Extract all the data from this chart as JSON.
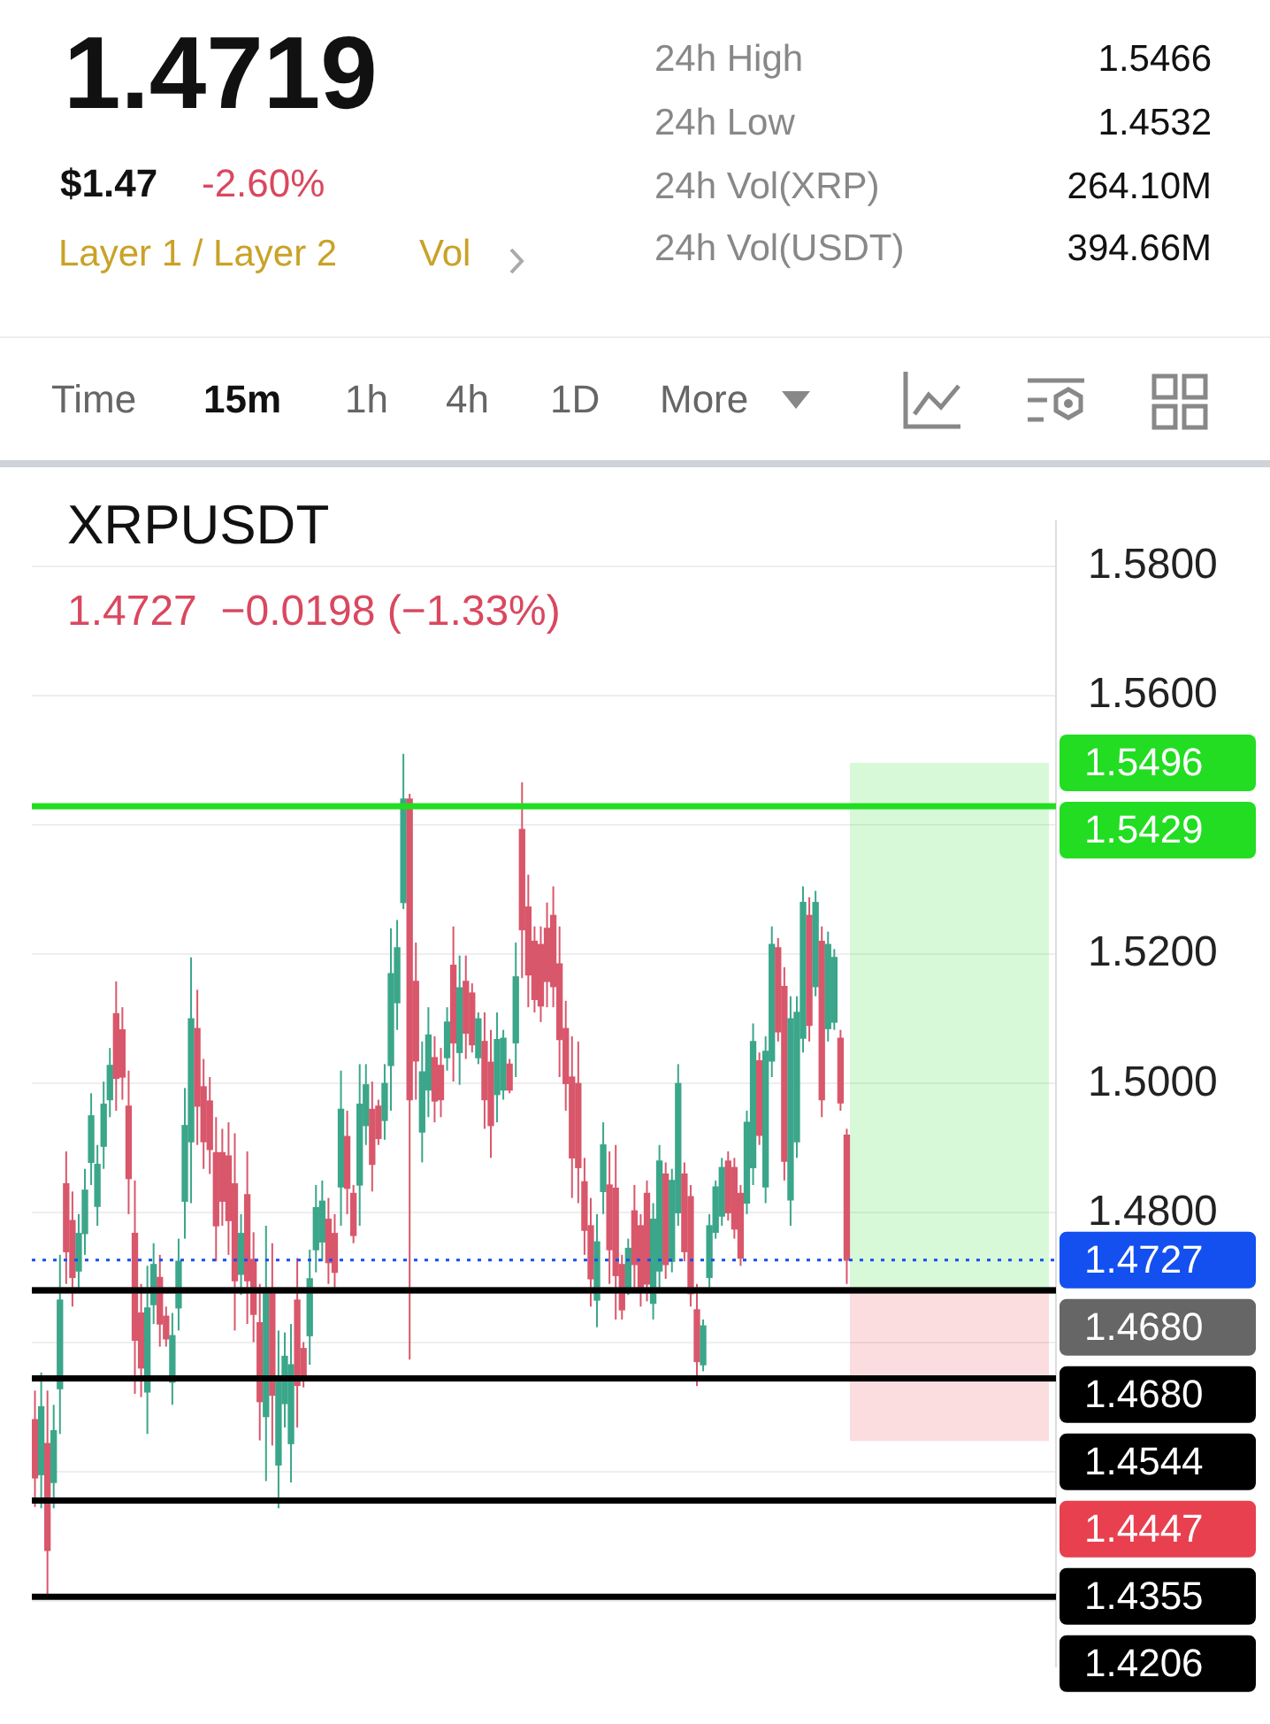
{
  "chart_data": {
    "type": "candlestick",
    "title": "XRPUSDT",
    "subtitle": "1.4727  −0.0198 (−1.33%)",
    "annotations": [
      "1.4719",
      "$1.47",
      "-2.60%",
      "Layer 1 / Layer 2",
      "Vol",
      "24h High",
      "1.5466",
      "24h Low",
      "1.4532",
      "24h Vol(XRP)",
      "264.10M",
      "24h Vol(USDT)",
      "394.66M",
      "Time",
      "15m",
      "1h",
      "4h",
      "1D",
      "More"
    ],
    "categories": [
      null,
      null,
      null,
      null,
      null,
      null,
      null,
      null,
      null,
      null,
      null,
      null,
      null,
      null,
      null,
      null,
      null,
      null,
      null,
      null,
      null,
      null,
      null,
      null,
      null,
      null,
      null,
      null,
      null,
      null,
      null,
      null,
      null,
      null,
      null,
      null,
      null,
      null,
      null,
      null,
      null,
      null,
      null,
      null,
      null,
      null,
      null,
      null,
      null,
      null,
      null,
      null,
      null,
      null,
      null,
      null,
      null,
      null,
      null,
      null,
      null,
      null,
      null,
      null,
      null,
      null,
      null,
      null,
      null,
      null,
      null,
      null,
      null,
      null,
      null,
      null,
      null,
      null,
      null,
      null,
      null,
      null,
      null,
      null,
      null,
      null,
      null,
      null,
      null,
      null,
      null,
      null,
      null,
      null,
      null,
      null,
      null,
      null,
      null,
      null,
      null,
      null,
      null,
      null,
      null,
      null,
      null,
      null,
      null,
      null,
      null,
      null,
      null,
      null,
      null,
      null,
      null,
      null,
      null,
      null,
      null,
      null,
      null,
      null,
      null,
      null,
      null,
      null,
      null,
      null,
      null,
      null,
      null,
      null,
      null,
      null,
      null,
      null,
      null,
      null,
      null,
      null,
      null,
      null,
      null,
      null,
      null,
      null,
      null,
      null,
      null,
      null,
      null,
      null,
      null,
      null,
      null,
      null,
      null,
      null,
      null,
      null,
      null,
      null
    ],
    "ohlc": [
      [
        1.448,
        1.4525,
        1.4345,
        1.439
      ],
      [
        1.4395,
        1.4553,
        1.4343,
        1.45
      ],
      [
        1.4443,
        1.4525,
        1.4206,
        1.4278
      ],
      [
        1.4383,
        1.4503,
        1.4343,
        1.4463
      ],
      [
        1.4528,
        1.4735,
        1.4458,
        1.4665
      ],
      [
        1.4845,
        1.4895,
        1.469,
        1.474
      ],
      [
        1.4788,
        1.4833,
        1.4655,
        1.47
      ],
      [
        1.471,
        1.4798,
        1.468,
        1.4768
      ],
      [
        1.4768,
        1.4868,
        1.4735,
        1.4835
      ],
      [
        1.4878,
        1.4985,
        1.4843,
        1.495
      ],
      [
        1.481,
        1.4905,
        1.478,
        1.4875
      ],
      [
        1.4903,
        1.5003,
        1.4868,
        1.4968
      ],
      [
        1.4975,
        1.5055,
        1.4948,
        1.5028
      ],
      [
        1.5108,
        1.5158,
        1.4958,
        1.5008
      ],
      [
        1.5083,
        1.5118,
        1.4975,
        1.501
      ],
      [
        1.4965,
        1.502,
        1.4798,
        1.4853
      ],
      [
        1.4768,
        1.485,
        1.452,
        1.4603
      ],
      [
        1.4645,
        1.469,
        1.4515,
        1.456
      ],
      [
        1.4523,
        1.4718,
        1.4458,
        1.4653
      ],
      [
        1.4658,
        1.4753,
        1.4628,
        1.472
      ],
      [
        1.47,
        1.4735,
        1.4593,
        1.4628
      ],
      [
        1.464,
        1.4655,
        1.4593,
        1.4605
      ],
      [
        1.4538,
        1.4645,
        1.4503,
        1.461
      ],
      [
        1.4653,
        1.476,
        1.4618,
        1.4725
      ],
      [
        1.4818,
        1.4993,
        1.476,
        1.4935
      ],
      [
        1.491,
        1.5195,
        1.4815,
        1.51
      ],
      [
        1.5085,
        1.5145,
        1.4905,
        1.4965
      ],
      [
        1.4995,
        1.5038,
        1.4868,
        1.491
      ],
      [
        1.4973,
        1.501,
        1.486,
        1.4898
      ],
      [
        1.4893,
        1.4948,
        1.4725,
        1.478
      ],
      [
        1.4893,
        1.493,
        1.478,
        1.4818
      ],
      [
        1.4888,
        1.494,
        1.4735,
        1.4788
      ],
      [
        1.4845,
        1.4923,
        1.4618,
        1.4695
      ],
      [
        1.4705,
        1.4798,
        1.4673,
        1.4768
      ],
      [
        1.4828,
        1.4895,
        1.4628,
        1.4695
      ],
      [
        1.4728,
        1.477,
        1.46,
        1.4643
      ],
      [
        1.463,
        1.469,
        1.4448,
        1.4508
      ],
      [
        1.4485,
        1.478,
        1.4385,
        1.468
      ],
      [
        1.4675,
        1.4753,
        1.444,
        1.4518
      ],
      [
        1.441,
        1.4618,
        1.4343,
        1.4548
      ],
      [
        1.4505,
        1.4615,
        1.4468,
        1.4578
      ],
      [
        1.4443,
        1.4628,
        1.4383,
        1.4565
      ],
      [
        1.4665,
        1.473,
        1.4468,
        1.4533
      ],
      [
        1.459,
        1.46,
        1.453,
        1.454
      ],
      [
        1.461,
        1.4743,
        1.4565,
        1.4698
      ],
      [
        1.4743,
        1.4843,
        1.4708,
        1.4808
      ],
      [
        1.4755,
        1.485,
        1.4725,
        1.4818
      ],
      [
        1.479,
        1.4823,
        1.469,
        1.4723
      ],
      [
        1.4768,
        1.4798,
        1.4678,
        1.4708
      ],
      [
        1.484,
        1.502,
        1.478,
        1.496
      ],
      [
        1.4918,
        1.4958,
        1.4798,
        1.4838
      ],
      [
        1.483,
        1.4843,
        1.4753,
        1.4765
      ],
      [
        1.4843,
        1.503,
        1.478,
        1.4968
      ],
      [
        1.4935,
        1.503,
        1.4905,
        1.4998
      ],
      [
        1.496,
        1.5003,
        1.4833,
        1.4875
      ],
      [
        1.4965,
        1.4975,
        1.4905,
        1.4915
      ],
      [
        1.4943,
        1.503,
        1.4913,
        1.5
      ],
      [
        1.5028,
        1.524,
        1.4958,
        1.517
      ],
      [
        1.5125,
        1.5253,
        1.5083,
        1.521
      ],
      [
        1.528,
        1.551,
        1.527,
        1.544
      ],
      [
        1.544,
        1.5448,
        1.4573,
        1.4975
      ],
      [
        1.5158,
        1.5218,
        1.4975,
        1.5035
      ],
      [
        1.4925,
        1.5065,
        1.4878,
        1.5018
      ],
      [
        1.499,
        1.5118,
        1.4948,
        1.5075
      ],
      [
        1.504,
        1.5073,
        1.494,
        1.4973
      ],
      [
        1.5028,
        1.5055,
        1.4948,
        1.4975
      ],
      [
        1.504,
        1.5118,
        1.502,
        1.5095
      ],
      [
        1.5183,
        1.5243,
        1.5003,
        1.5063
      ],
      [
        1.5048,
        1.5198,
        1.4998,
        1.5148
      ],
      [
        1.5158,
        1.5198,
        1.5038,
        1.5078
      ],
      [
        1.514,
        1.5155,
        1.5048,
        1.506
      ],
      [
        1.504,
        1.511,
        1.503,
        1.51
      ],
      [
        1.5065,
        1.511,
        1.493,
        1.4975
      ],
      [
        1.5033,
        1.5083,
        1.4885,
        1.4935
      ],
      [
        1.4983,
        1.511,
        1.494,
        1.5068
      ],
      [
        1.499,
        1.5083,
        1.4975,
        1.507
      ],
      [
        1.503,
        1.5038,
        1.4985,
        1.499
      ],
      [
        1.5063,
        1.5218,
        1.501,
        1.5165
      ],
      [
        1.5393,
        1.5466,
        1.5163,
        1.5238
      ],
      [
        1.5273,
        1.5323,
        1.5118,
        1.5168
      ],
      [
        1.522,
        1.5243,
        1.511,
        1.513
      ],
      [
        1.5215,
        1.5243,
        1.5095,
        1.512
      ],
      [
        1.524,
        1.528,
        1.5118,
        1.5158
      ],
      [
        1.526,
        1.5305,
        1.5118,
        1.515
      ],
      [
        1.5185,
        1.5243,
        1.501,
        1.5068
      ],
      [
        1.5085,
        1.5128,
        1.4958,
        1.5
      ],
      [
        1.501,
        1.5073,
        1.4823,
        1.4885
      ],
      [
        1.5,
        1.5065,
        1.4815,
        1.487
      ],
      [
        1.4848,
        1.4885,
        1.4735,
        1.4773
      ],
      [
        1.478,
        1.4823,
        1.4655,
        1.4698
      ],
      [
        1.4665,
        1.4798,
        1.4623,
        1.4755
      ],
      [
        1.4833,
        1.494,
        1.4798,
        1.4905
      ],
      [
        1.4843,
        1.4895,
        1.469,
        1.4743
      ],
      [
        1.4838,
        1.4905,
        1.4635,
        1.4703
      ],
      [
        1.472,
        1.4735,
        1.4635,
        1.465
      ],
      [
        1.4685,
        1.476,
        1.4673,
        1.4745
      ],
      [
        1.4803,
        1.4843,
        1.468,
        1.472
      ],
      [
        1.478,
        1.4798,
        1.4655,
        1.468
      ],
      [
        1.483,
        1.485,
        1.4663,
        1.469
      ],
      [
        1.466,
        1.4815,
        1.4635,
        1.479
      ],
      [
        1.471,
        1.4905,
        1.468,
        1.488
      ],
      [
        1.486,
        1.4878,
        1.4698,
        1.472
      ],
      [
        1.4725,
        1.4868,
        1.4708,
        1.485
      ],
      [
        1.48,
        1.503,
        1.478,
        1.5
      ],
      [
        1.486,
        1.4878,
        1.4725,
        1.474
      ],
      [
        1.4825,
        1.4843,
        1.4655,
        1.4675
      ],
      [
        1.465,
        1.469,
        1.4532,
        1.457
      ],
      [
        1.4565,
        1.4635,
        1.4555,
        1.4625
      ],
      [
        1.47,
        1.4798,
        1.468,
        1.478
      ],
      [
        1.477,
        1.485,
        1.476,
        1.484
      ],
      [
        1.4795,
        1.4885,
        1.478,
        1.487
      ],
      [
        1.488,
        1.4895,
        1.4788,
        1.48
      ],
      [
        1.487,
        1.4885,
        1.476,
        1.4775
      ],
      [
        1.483,
        1.4843,
        1.4718,
        1.473
      ],
      [
        1.4815,
        1.4958,
        1.4798,
        1.494
      ],
      [
        1.487,
        1.5093,
        1.4843,
        1.5065
      ],
      [
        1.5035,
        1.5048,
        1.4905,
        1.492
      ],
      [
        1.484,
        1.5073,
        1.4815,
        1.505
      ],
      [
        1.5035,
        1.5243,
        1.501,
        1.5215
      ],
      [
        1.521,
        1.5225,
        1.5065,
        1.508
      ],
      [
        1.515,
        1.518,
        1.485,
        1.488
      ],
      [
        1.482,
        1.5135,
        1.478,
        1.51
      ],
      [
        1.491,
        1.5135,
        1.4885,
        1.511
      ],
      [
        1.507,
        1.5305,
        1.5048,
        1.528
      ],
      [
        1.526,
        1.5288,
        1.5065,
        1.509
      ],
      [
        1.515,
        1.5298,
        1.5135,
        1.528
      ],
      [
        1.522,
        1.5243,
        1.4948,
        1.4975
      ],
      [
        1.5085,
        1.5235,
        1.5065,
        1.5215
      ],
      [
        1.5095,
        1.5208,
        1.5083,
        1.5195
      ],
      [
        1.507,
        1.5083,
        1.4958,
        1.497
      ],
      [
        1.492,
        1.493,
        1.469,
        1.4727
      ],
      null,
      null,
      null,
      null,
      null,
      null,
      null,
      null,
      null,
      null,
      null,
      null,
      null,
      null,
      null,
      null,
      null,
      null,
      null,
      null,
      null,
      null,
      null,
      null,
      null,
      null,
      null,
      null,
      null,
      null,
      null,
      null,
      null
    ],
    "colors": [
      "#d9576b",
      "#3ba68a",
      "#d9576b",
      "#3ba68a",
      "#3ba68a",
      "#d9576b",
      "#d9576b",
      "#3ba68a",
      "#3ba68a",
      "#3ba68a",
      "#3ba68a",
      "#3ba68a",
      "#3ba68a",
      "#d9576b",
      "#d9576b",
      "#d9576b",
      "#d9576b",
      "#d9576b",
      "#3ba68a",
      "#3ba68a",
      "#d9576b",
      "#d9576b",
      "#3ba68a",
      "#3ba68a",
      "#3ba68a",
      "#3ba68a",
      "#d9576b",
      "#d9576b",
      "#d9576b",
      "#d9576b",
      "#d9576b",
      "#d9576b",
      "#d9576b",
      "#3ba68a",
      "#d9576b",
      "#d9576b",
      "#d9576b",
      "#3ba68a",
      "#d9576b",
      "#3ba68a",
      "#3ba68a",
      "#3ba68a",
      "#d9576b",
      "#d9576b",
      "#3ba68a",
      "#3ba68a",
      "#3ba68a",
      "#d9576b",
      "#d9576b",
      "#3ba68a",
      "#d9576b",
      "#d9576b",
      "#3ba68a",
      "#3ba68a",
      "#d9576b",
      "#d9576b",
      "#3ba68a",
      "#3ba68a",
      "#3ba68a",
      "#3ba68a",
      "#d9576b",
      "#d9576b",
      "#3ba68a",
      "#3ba68a",
      "#d9576b",
      "#d9576b",
      "#3ba68a",
      "#d9576b",
      "#3ba68a",
      "#d9576b",
      "#d9576b",
      "#3ba68a",
      "#d9576b",
      "#d9576b",
      "#3ba68a",
      "#3ba68a",
      "#d9576b",
      "#3ba68a",
      "#d9576b",
      "#d9576b",
      "#d9576b",
      "#d9576b",
      "#d9576b",
      "#d9576b",
      "#d9576b",
      "#d9576b",
      "#d9576b",
      "#d9576b",
      "#d9576b",
      "#d9576b",
      "#3ba68a",
      "#3ba68a",
      "#d9576b",
      "#d9576b",
      "#d9576b",
      "#3ba68a",
      "#d9576b",
      "#d9576b",
      "#d9576b",
      "#3ba68a",
      "#3ba68a",
      "#d9576b",
      "#3ba68a",
      "#3ba68a",
      "#d9576b",
      "#d9576b",
      "#d9576b",
      "#3ba68a",
      "#3ba68a",
      "#3ba68a",
      "#3ba68a",
      "#d9576b",
      "#d9576b",
      "#d9576b",
      "#3ba68a",
      "#3ba68a",
      "#d9576b",
      "#3ba68a",
      "#3ba68a",
      "#d9576b",
      "#d9576b",
      "#3ba68a",
      "#3ba68a",
      "#3ba68a",
      "#d9576b",
      "#3ba68a",
      "#d9576b",
      "#3ba68a",
      "#3ba68a",
      "#d9576b",
      "#d9576b",
      null,
      null,
      null,
      null,
      null,
      null,
      null,
      null,
      null,
      null,
      null,
      null,
      null,
      null,
      null,
      null,
      null,
      null,
      null,
      null,
      null,
      null,
      null,
      null,
      null,
      null,
      null,
      null,
      null,
      null,
      null,
      null,
      null
    ],
    "ylim": [
      1.4098,
      1.587
    ],
    "yticks": [
      {
        "value": 1.42,
        "label": null
      },
      {
        "value": 1.44,
        "label": null
      },
      {
        "value": 1.46,
        "label": null
      },
      {
        "value": 1.48,
        "label": "1.4800"
      },
      {
        "value": 1.5,
        "label": "1.5000"
      },
      {
        "value": 1.52,
        "label": "1.5200"
      },
      {
        "value": 1.54,
        "label": null
      },
      {
        "value": 1.56,
        "label": "1.5600"
      },
      {
        "value": 1.58,
        "label": "1.5800"
      }
    ],
    "tick_labels": "y",
    "grid": "y",
    "legend": "right",
    "ref_lines": [
      {
        "axis": "y",
        "value": 1.5429,
        "label": "1.5429",
        "color": "#22dd22"
      },
      {
        "axis": "y",
        "value": 1.4727,
        "label": "1.4727",
        "color": "#1450f0",
        "line_style": "dotted"
      },
      {
        "axis": "y",
        "value": 1.468,
        "label": "1.4680",
        "color": "#666666"
      },
      {
        "axis": "y",
        "value": 1.468,
        "label": "1.4680",
        "color": "#000000"
      },
      {
        "axis": "y",
        "value": 1.4544,
        "label": "1.4544",
        "color": "#000000"
      },
      {
        "axis": "y",
        "value": 1.4355,
        "label": "1.4355",
        "color": "#000000"
      },
      {
        "axis": "y",
        "value": 1.4206,
        "label": "1.4206",
        "color": "#000000"
      }
    ],
    "bands": [
      {
        "axis": "y",
        "from": 1.468,
        "to": 1.5496,
        "label": "1.5496",
        "color": "#22dd22"
      },
      {
        "axis": "y",
        "from": 1.4447,
        "to": 1.468,
        "label": "1.4447",
        "color": "#e8404f"
      }
    ]
  }
}
